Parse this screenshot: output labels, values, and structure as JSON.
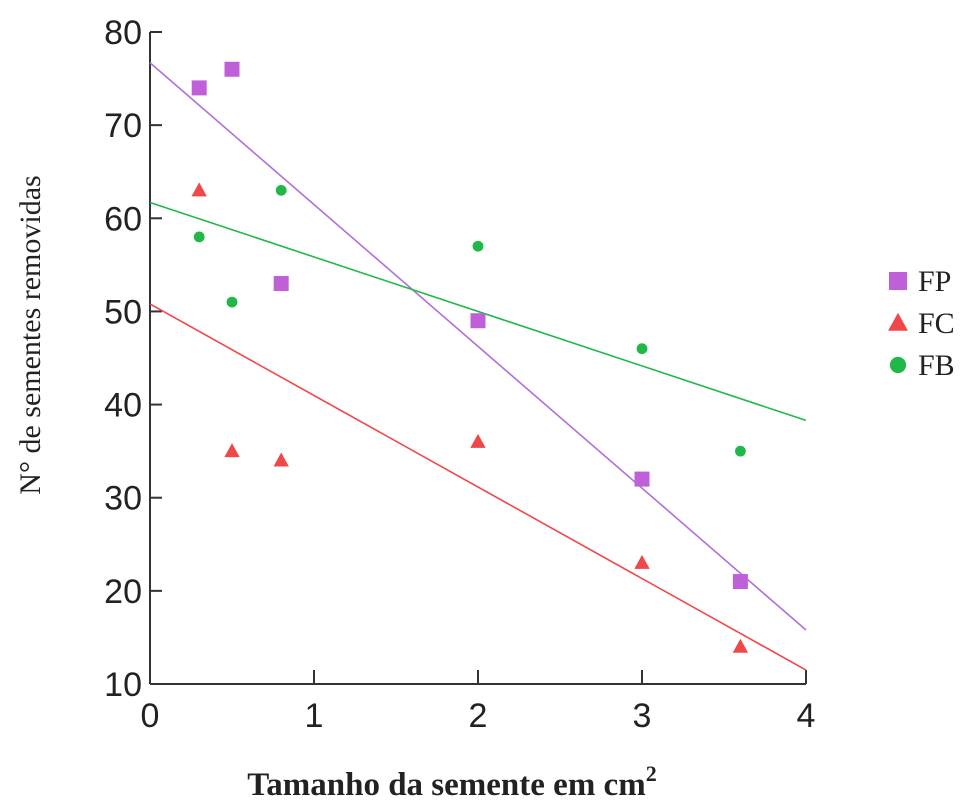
{
  "chart_data": {
    "type": "scatter",
    "title": "",
    "xlabel": "Tamanho da semente em cm",
    "xlabel_superscript": "2",
    "ylabel": "N° de sementes removidas",
    "xlim": [
      0,
      4
    ],
    "ylim": [
      10,
      80
    ],
    "xticks": [
      "0",
      "1",
      "2",
      "3",
      "4"
    ],
    "yticks": [
      "10",
      "20",
      "30",
      "40",
      "50",
      "60",
      "70",
      "80"
    ],
    "grid": false,
    "legend_position": "right",
    "series": [
      {
        "name": "FP",
        "marker": "square",
        "color": "#c060d8",
        "line_color": "#b070d8",
        "points": [
          [
            0.3,
            74
          ],
          [
            0.5,
            76
          ],
          [
            0.8,
            53
          ],
          [
            2,
            49
          ],
          [
            3,
            32
          ],
          [
            3.6,
            21
          ]
        ],
        "trend": [
          [
            0,
            76.7
          ],
          [
            4,
            15.8
          ]
        ]
      },
      {
        "name": "FC",
        "marker": "triangle",
        "color": "#f04848",
        "line_color": "#f04848",
        "points": [
          [
            0.3,
            63
          ],
          [
            0.5,
            35
          ],
          [
            0.8,
            34
          ],
          [
            2,
            36
          ],
          [
            3,
            23
          ],
          [
            3.6,
            14
          ]
        ],
        "trend": [
          [
            0,
            50.8
          ],
          [
            4,
            11.5
          ]
        ]
      },
      {
        "name": "FB",
        "marker": "circle",
        "color": "#20b848",
        "line_color": "#20b848",
        "points": [
          [
            0.3,
            58
          ],
          [
            0.5,
            51
          ],
          [
            0.8,
            63
          ],
          [
            2,
            57
          ],
          [
            3,
            46
          ],
          [
            3.6,
            35
          ]
        ],
        "trend": [
          [
            0,
            61.7
          ],
          [
            4,
            38.3
          ]
        ]
      }
    ]
  }
}
